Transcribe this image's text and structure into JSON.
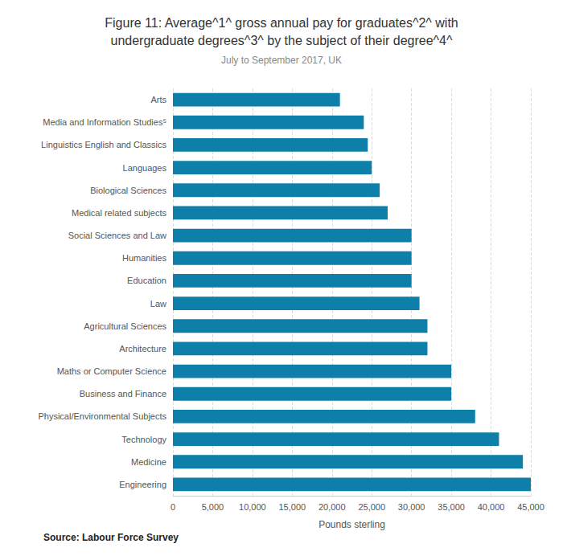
{
  "chart_data": {
    "type": "bar",
    "orientation": "horizontal",
    "title": "Figure 11: Average^1^ gross annual pay for graduates^2^ with\nundergraduate degrees^3^ by the subject of their degree^4^",
    "subtitle": "July to September 2017, UK",
    "xlabel": "Pounds sterling",
    "source": "Source: Labour Force Survey",
    "color": "#0e7fa8",
    "categories": [
      "Arts",
      "Media and Information Studies⁵",
      "Linguistics English and Classics",
      "Languages",
      "Biological Sciences",
      "Medical related subjects",
      "Social Sciences and Law",
      "Humanities",
      "Education",
      "Law",
      "Agricultural Sciences",
      "Architecture",
      "Maths or Computer Science",
      "Business and Finance",
      "Physical/Environmental Subjects",
      "Technology",
      "Medicine",
      "Engineering"
    ],
    "values": [
      21000,
      24000,
      24500,
      25000,
      26000,
      27000,
      30000,
      30000,
      30000,
      31000,
      32000,
      32000,
      35000,
      35000,
      38000,
      41000,
      44000,
      45000
    ],
    "xlim": [
      0,
      45000
    ],
    "xticks": [
      0,
      {
        "value": 5000,
        "label": "5,000"
      },
      {
        "value": 10000,
        "label": "10,000"
      },
      {
        "value": 15000,
        "label": "15,000"
      },
      {
        "value": 20000,
        "label": "20,000"
      },
      {
        "value": 25000,
        "label": "25,000"
      },
      {
        "value": 30000,
        "label": "30,000"
      },
      {
        "value": 35000,
        "label": "35,000"
      },
      {
        "value": 40000,
        "label": "40,000"
      },
      {
        "value": 45000,
        "label": "45,000"
      }
    ],
    "grid": true
  }
}
